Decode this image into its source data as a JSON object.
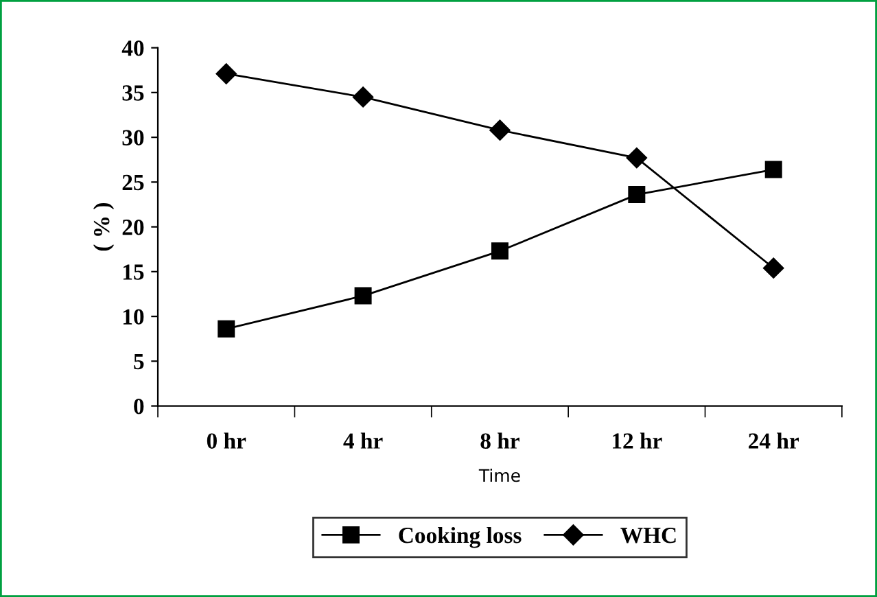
{
  "chart_data": {
    "type": "line",
    "xlabel": "Time",
    "ylabel": "( % )",
    "categories": [
      "0 hr",
      "4 hr",
      "8 hr",
      "12 hr",
      "24 hr"
    ],
    "series": [
      {
        "name": "Cooking loss",
        "color": "#000000",
        "marker": "square",
        "values": [
          8.6,
          12.3,
          17.3,
          23.6,
          26.4
        ]
      },
      {
        "name": "WHC",
        "color": "#000000",
        "marker": "diamond",
        "values": [
          37.1,
          34.5,
          30.8,
          27.7,
          15.4
        ]
      }
    ],
    "ylim": [
      0,
      40
    ],
    "yticks": [
      0,
      5,
      10,
      15,
      20,
      25,
      30,
      35,
      40
    ],
    "grid": false,
    "legend": "bottom",
    "line_style": "solid"
  }
}
